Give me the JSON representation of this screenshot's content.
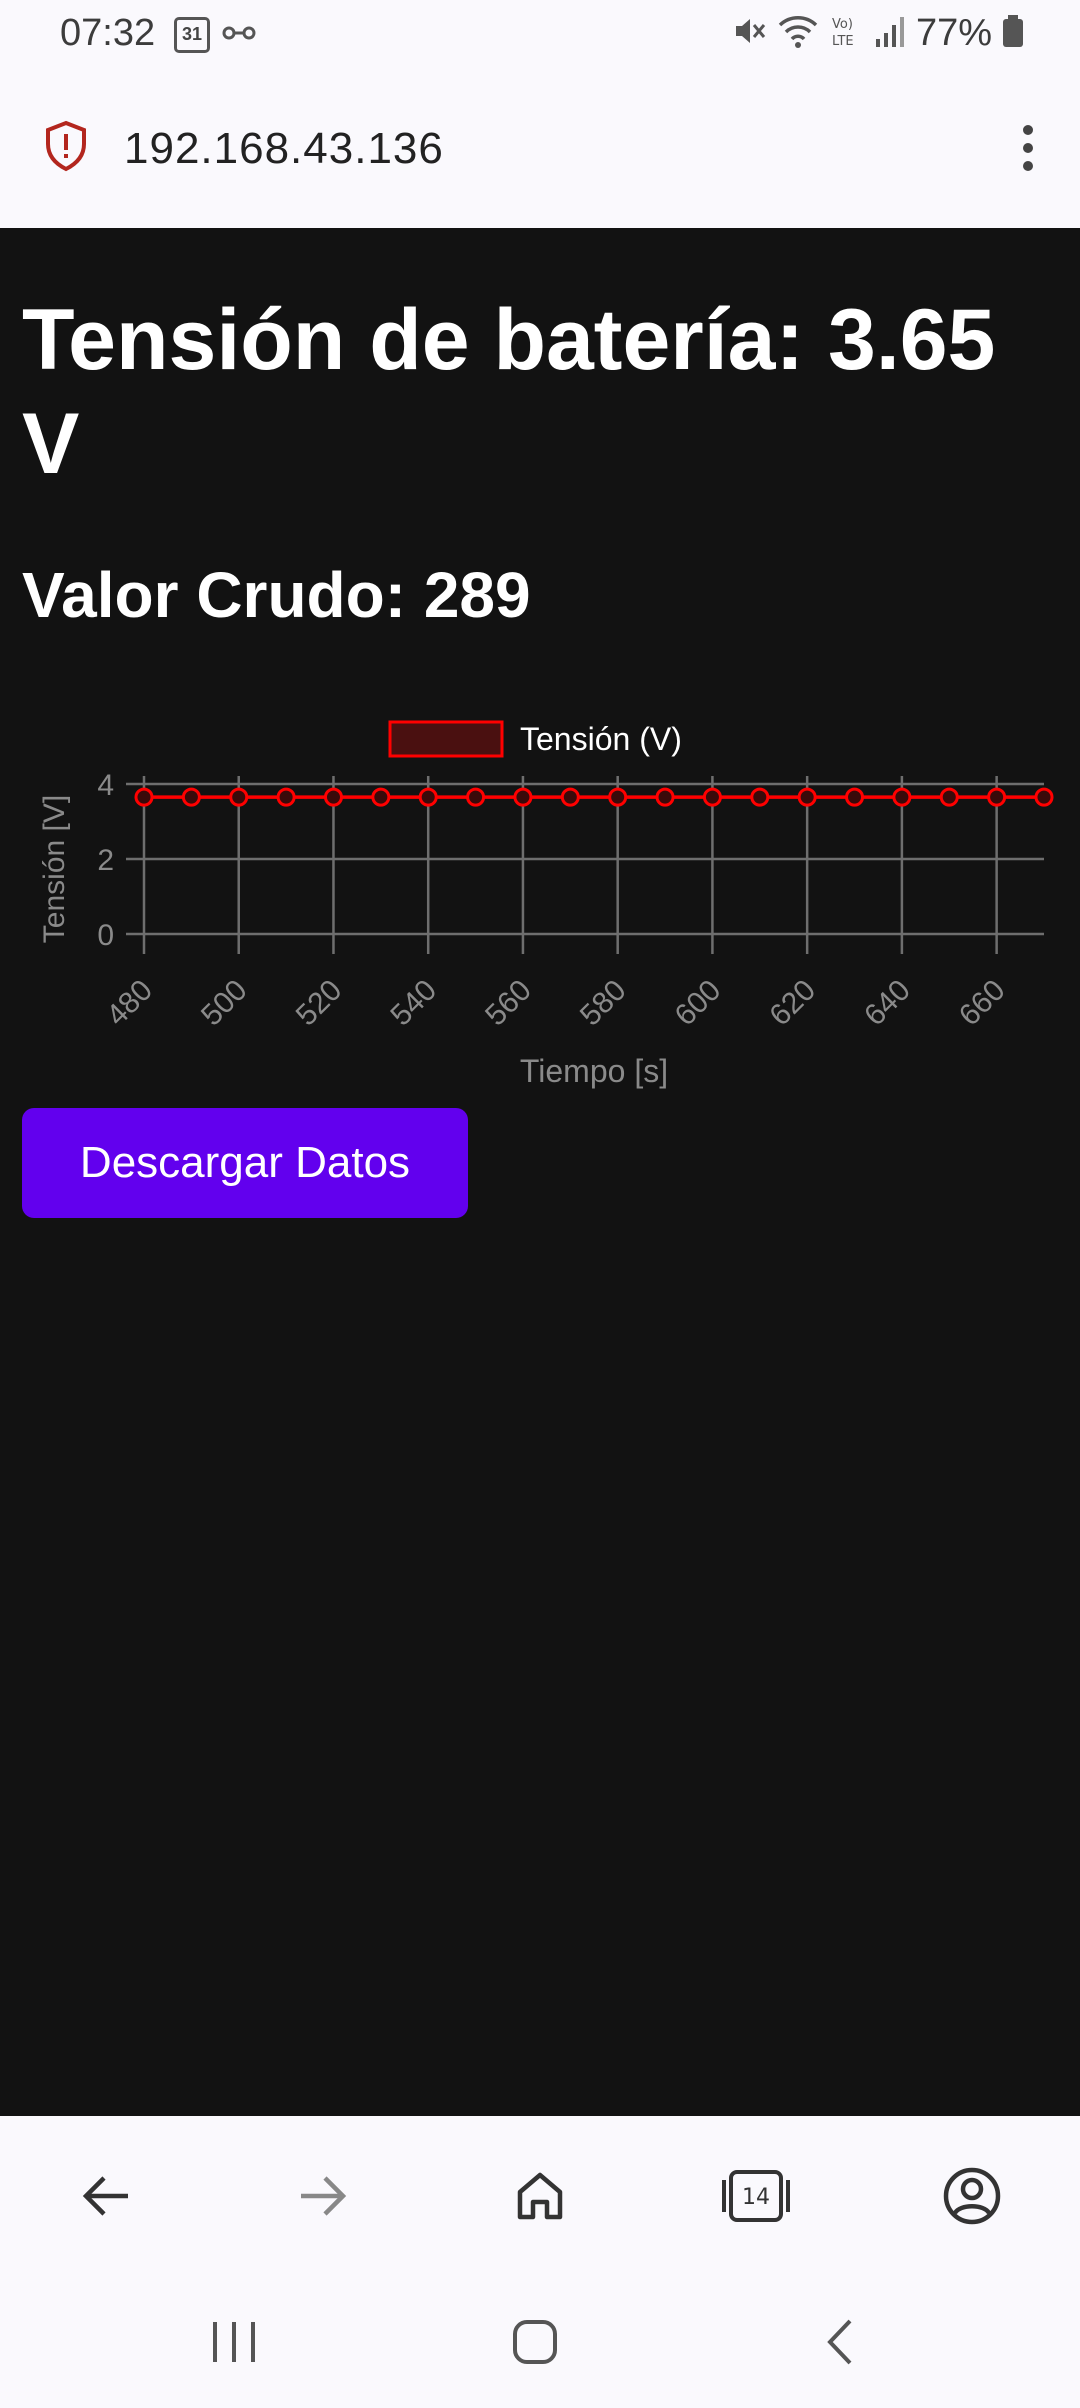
{
  "status_bar": {
    "time": "07:32",
    "calendar_day": "31",
    "battery": "77%"
  },
  "browser": {
    "url": "192.168.43.136",
    "tab_count": "14"
  },
  "page": {
    "title": "Tensión de batería: 3.65 V",
    "raw_value": "Valor Crudo: 289",
    "download_label": "Descargar Datos"
  },
  "chart_data": {
    "type": "line",
    "series": [
      {
        "name": "Tensión (V)",
        "color": "#ff0000",
        "x": [
          480,
          490,
          500,
          510,
          520,
          530,
          540,
          550,
          560,
          570,
          580,
          590,
          600,
          610,
          620,
          630,
          640,
          650,
          660,
          670
        ],
        "values": [
          3.65,
          3.65,
          3.65,
          3.65,
          3.65,
          3.65,
          3.65,
          3.65,
          3.65,
          3.65,
          3.65,
          3.65,
          3.65,
          3.65,
          3.65,
          3.65,
          3.65,
          3.65,
          3.65,
          3.65
        ]
      }
    ],
    "xticks": [
      480,
      500,
      520,
      540,
      560,
      580,
      600,
      620,
      640,
      660
    ],
    "yticks": [
      0,
      2,
      4
    ],
    "xlabel": "Tiempo [s]",
    "ylabel": "Tensión [V]",
    "xlim": [
      480,
      670
    ],
    "ylim": [
      0,
      4
    ],
    "grid": true,
    "legend": "top-center"
  }
}
